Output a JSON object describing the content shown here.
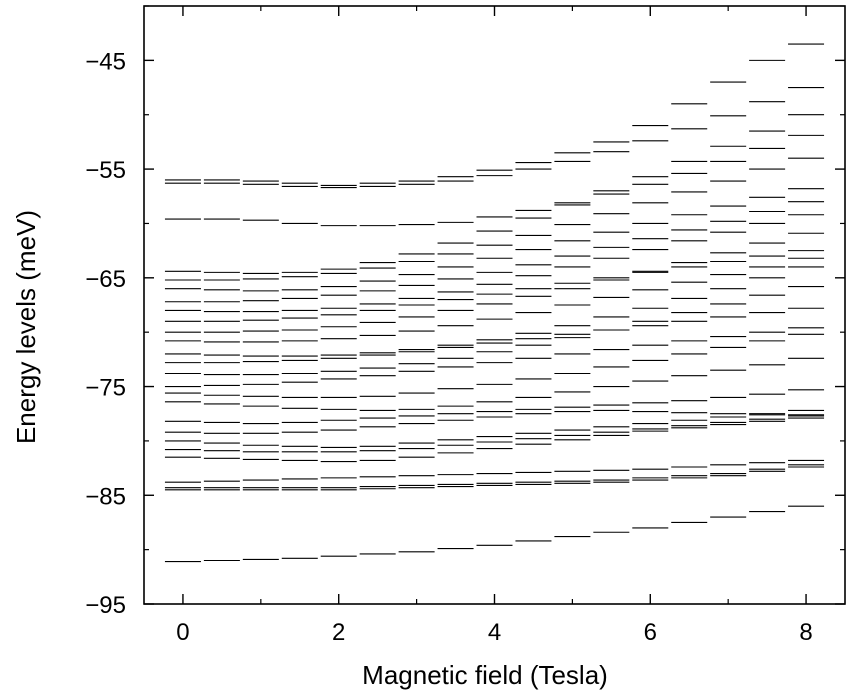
{
  "chart_data": {
    "type": "scatter",
    "mark": "horizontal level segments",
    "xlabel": "Magnetic field (Tesla)",
    "ylabel": "Energy levels (meV)",
    "xlim": [
      -0.5,
      8.5
    ],
    "ylim": [
      -95,
      -40
    ],
    "x_ticks": [
      0,
      2,
      4,
      6,
      8
    ],
    "y_ticks": [
      -45,
      -55,
      -65,
      -75,
      -85,
      -95
    ],
    "x_tick_labels": [
      "0",
      "2",
      "4",
      "6",
      "8"
    ],
    "y_tick_labels": [
      "−45",
      "−55",
      "−65",
      "−75",
      "−85",
      "−95"
    ],
    "grid": false,
    "series": [
      {
        "x": [
          0,
          0.5,
          1,
          1.5,
          2,
          2.5,
          3,
          3.5,
          4,
          4.5,
          5,
          5.5,
          6,
          6.5,
          7,
          7.5,
          8
        ],
        "values": [
          -91.1,
          -91.0,
          -90.9,
          -90.8,
          -90.6,
          -90.4,
          -90.2,
          -89.9,
          -89.6,
          -89.2,
          -88.8,
          -88.4,
          -88.0,
          -87.5,
          -87.0,
          -86.5,
          -86.0
        ]
      },
      {
        "x": [
          0,
          0.5,
          1,
          1.5,
          2,
          2.5,
          3,
          3.5,
          4,
          4.5,
          5,
          5.5,
          6,
          6.5,
          7,
          7.5,
          8
        ],
        "values": [
          -84.5,
          -84.5,
          -84.5,
          -84.5,
          -84.5,
          -84.4,
          -84.3,
          -84.2,
          -84.1,
          -84.0,
          -83.9,
          -83.8,
          -83.6,
          -83.4,
          -83.2,
          -82.8,
          -82.4
        ]
      },
      {
        "x": [
          0,
          0.5,
          1,
          1.5,
          2,
          2.5,
          3,
          3.5,
          4,
          4.5,
          5,
          5.5,
          6,
          6.5,
          7,
          7.5,
          8
        ],
        "values": [
          -84.3,
          -84.3,
          -84.3,
          -84.3,
          -84.3,
          -84.2,
          -84.1,
          -84.0,
          -83.9,
          -83.8,
          -83.7,
          -83.6,
          -83.4,
          -83.2,
          -83.0,
          -82.6,
          -82.2
        ]
      },
      {
        "x": [
          0,
          0.5,
          1,
          1.5,
          2,
          2.5,
          3,
          3.5,
          4,
          4.5,
          5,
          5.5,
          6,
          6.5,
          7,
          7.5,
          8
        ],
        "values": [
          -83.8,
          -83.7,
          -83.6,
          -83.5,
          -83.4,
          -83.3,
          -83.2,
          -83.1,
          -83.0,
          -82.9,
          -82.8,
          -82.7,
          -82.6,
          -82.4,
          -82.2,
          -82.0,
          -81.8
        ]
      },
      {
        "x": [
          0,
          0.5,
          1,
          1.5,
          2,
          2.5,
          3,
          3.5,
          4,
          4.5,
          5,
          5.5,
          6,
          6.5,
          7,
          7.5,
          8
        ],
        "values": [
          -81.5,
          -81.6,
          -81.7,
          -81.8,
          -81.9,
          -81.8,
          -81.5,
          -81.1,
          -80.7,
          -80.3,
          -79.9,
          -79.5,
          -79.1,
          -78.8,
          -78.5,
          -78.2,
          -77.9
        ]
      },
      {
        "x": [
          0,
          0.5,
          1,
          1.5,
          2,
          2.5,
          3,
          3.5,
          4,
          4.5,
          5,
          5.5,
          6,
          6.5,
          7,
          7.5,
          8
        ],
        "values": [
          -80.8,
          -80.9,
          -81.0,
          -81.0,
          -81.0,
          -80.9,
          -80.7,
          -80.4,
          -80.1,
          -79.8,
          -79.5,
          -79.2,
          -78.9,
          -78.6,
          -78.3,
          -78.0,
          -77.7
        ]
      },
      {
        "x": [
          0,
          0.5,
          1,
          1.5,
          2,
          2.5,
          3,
          3.5,
          4,
          4.5,
          5,
          5.5,
          6,
          6.5,
          7,
          7.5,
          8
        ],
        "values": [
          -80.0,
          -80.2,
          -80.4,
          -80.5,
          -80.6,
          -80.5,
          -80.2,
          -79.9,
          -79.6,
          -79.3,
          -79.0,
          -78.7,
          -78.4,
          -78.1,
          -77.8,
          -77.5,
          -77.2
        ]
      },
      {
        "x": [
          0,
          0.5,
          1,
          1.5,
          2,
          2.5,
          3,
          3.5,
          4,
          4.5,
          5,
          5.5,
          6,
          6.5,
          7,
          7.5,
          8
        ],
        "values": [
          -79.2,
          -79.3,
          -79.3,
          -79.2,
          -79.0,
          -78.7,
          -78.4,
          -78.1,
          -77.8,
          -77.5,
          -77.3,
          -77.2,
          -77.3,
          -77.4,
          -77.5,
          -77.6,
          -77.6
        ]
      },
      {
        "x": [
          0,
          0.5,
          1,
          1.5,
          2,
          2.5,
          3,
          3.5,
          4,
          4.5,
          5,
          5.5,
          6,
          6.5,
          7,
          7.5,
          8
        ],
        "values": [
          -78.2,
          -78.3,
          -78.4,
          -78.3,
          -78.1,
          -77.9,
          -77.7,
          -77.5,
          -77.3,
          -77.1,
          -76.9,
          -76.7,
          -76.5,
          -76.3,
          -76.0,
          -75.7,
          -75.3
        ]
      },
      {
        "x": [
          0,
          0.5,
          1,
          1.5,
          2,
          2.5,
          3,
          3.5,
          4,
          4.5,
          5,
          5.5,
          6,
          6.5,
          7,
          7.5,
          8
        ],
        "values": [
          -76.4,
          -76.6,
          -76.8,
          -77.0,
          -77.1,
          -77.2,
          -77.1,
          -76.8,
          -76.4,
          -76.0,
          -75.5,
          -75.0,
          -74.5,
          -74.0,
          -73.5,
          -73.0,
          -72.4
        ]
      },
      {
        "x": [
          0,
          0.5,
          1,
          1.5,
          2,
          2.5,
          3,
          3.5,
          4,
          4.5,
          5,
          5.5,
          6,
          6.5,
          7,
          7.5,
          8
        ],
        "values": [
          -75.6,
          -75.8,
          -75.9,
          -76.0,
          -76.0,
          -75.9,
          -75.6,
          -75.2,
          -74.8,
          -74.3,
          -73.8,
          -73.2,
          -72.6,
          -72.0,
          -71.4,
          -70.8,
          -70.2
        ]
      },
      {
        "x": [
          0,
          0.5,
          1,
          1.5,
          2,
          2.5,
          3,
          3.5,
          4,
          4.5,
          5,
          5.5,
          6,
          6.5,
          7,
          7.5,
          8
        ],
        "values": [
          -75.0,
          -74.9,
          -74.8,
          -74.6,
          -74.3,
          -74.0,
          -73.6,
          -73.2,
          -72.8,
          -72.4,
          -72.0,
          -71.6,
          -71.2,
          -70.8,
          -70.4,
          -70.0,
          -69.6
        ]
      },
      {
        "x": [
          0,
          0.5,
          1,
          1.5,
          2,
          2.5,
          3,
          3.5,
          4,
          4.5,
          5,
          5.5,
          6,
          6.5,
          7,
          7.5,
          8
        ],
        "values": [
          -73.8,
          -73.9,
          -73.9,
          -73.8,
          -73.6,
          -73.3,
          -72.9,
          -72.4,
          -71.8,
          -71.2,
          -70.5,
          -69.8,
          -69.0,
          -68.2,
          -67.4,
          -66.6,
          -65.8
        ]
      },
      {
        "x": [
          0,
          0.5,
          1,
          1.5,
          2,
          2.5,
          3,
          3.5,
          4,
          4.5,
          5,
          5.5,
          6,
          6.5,
          7,
          7.5,
          8
        ],
        "values": [
          -72.8,
          -72.8,
          -72.7,
          -72.6,
          -72.4,
          -72.1,
          -71.8,
          -71.4,
          -71.0,
          -70.6,
          -70.2,
          -69.8,
          -69.4,
          -69.0,
          -68.6,
          -68.2,
          -67.8
        ]
      },
      {
        "x": [
          0,
          0.5,
          1,
          1.5,
          2,
          2.5,
          3,
          3.5,
          4,
          4.5,
          5,
          5.5,
          6,
          6.5,
          7,
          7.5,
          8
        ],
        "values": [
          -72.0,
          -72.1,
          -72.2,
          -72.2,
          -72.1,
          -71.9,
          -71.6,
          -71.2,
          -70.7,
          -70.1,
          -69.4,
          -68.6,
          -67.8,
          -66.9,
          -66.0,
          -65.0,
          -64.0
        ]
      },
      {
        "x": [
          0,
          0.5,
          1,
          1.5,
          2,
          2.5,
          3,
          3.5,
          4,
          4.5,
          5,
          5.5,
          6,
          6.5,
          7,
          7.5,
          8
        ],
        "values": [
          -70.8,
          -70.9,
          -70.9,
          -70.8,
          -70.6,
          -70.3,
          -69.9,
          -69.4,
          -68.8,
          -68.2,
          -67.5,
          -66.8,
          -66.1,
          -65.4,
          -64.7,
          -64.0,
          -63.2
        ]
      },
      {
        "x": [
          0,
          0.5,
          1,
          1.5,
          2,
          2.5,
          3,
          3.5,
          4,
          4.5,
          5,
          5.5,
          6,
          6.5,
          7,
          7.5,
          8
        ],
        "values": [
          -70.0,
          -70.0,
          -69.9,
          -69.8,
          -69.5,
          -69.1,
          -68.6,
          -68.0,
          -67.4,
          -66.7,
          -66.0,
          -65.2,
          -64.4,
          -63.6,
          -62.7,
          -61.8,
          -60.9
        ]
      },
      {
        "x": [
          0,
          0.5,
          1,
          1.5,
          2,
          2.5,
          3,
          3.5,
          4,
          4.5,
          5,
          5.5,
          6,
          6.5,
          7,
          7.5,
          8
        ],
        "values": [
          -69.0,
          -69.0,
          -68.9,
          -68.7,
          -68.4,
          -68.0,
          -67.5,
          -67.0,
          -66.5,
          -66.0,
          -65.5,
          -65.0,
          -64.5,
          -64.0,
          -63.5,
          -63.0,
          -62.5
        ]
      },
      {
        "x": [
          0,
          0.5,
          1,
          1.5,
          2,
          2.5,
          3,
          3.5,
          4,
          4.5,
          5,
          5.5,
          6,
          6.5,
          7,
          7.5,
          8
        ],
        "values": [
          -68.0,
          -68.1,
          -68.1,
          -68.0,
          -67.8,
          -67.4,
          -66.9,
          -66.3,
          -65.6,
          -64.8,
          -64.0,
          -63.2,
          -62.4,
          -61.6,
          -60.8,
          -60.0,
          -59.2
        ]
      },
      {
        "x": [
          0,
          0.5,
          1,
          1.5,
          2,
          2.5,
          3,
          3.5,
          4,
          4.5,
          5,
          5.5,
          6,
          6.5,
          7,
          7.5,
          8
        ],
        "values": [
          -67.2,
          -67.2,
          -67.1,
          -66.9,
          -66.6,
          -66.2,
          -65.7,
          -65.1,
          -64.5,
          -63.8,
          -63.0,
          -62.2,
          -61.4,
          -60.6,
          -59.8,
          -58.9,
          -58.0
        ]
      },
      {
        "x": [
          0,
          0.5,
          1,
          1.5,
          2,
          2.5,
          3,
          3.5,
          4,
          4.5,
          5,
          5.5,
          6,
          6.5,
          7,
          7.5,
          8
        ],
        "values": [
          -66.0,
          -66.1,
          -66.2,
          -66.1,
          -65.8,
          -65.3,
          -64.7,
          -64.0,
          -63.2,
          -62.4,
          -61.6,
          -60.8,
          -60.0,
          -59.2,
          -58.4,
          -57.6,
          -56.8
        ]
      },
      {
        "x": [
          0,
          0.5,
          1,
          1.5,
          2,
          2.5,
          3,
          3.5,
          4,
          4.5,
          5,
          5.5,
          6,
          6.5,
          7,
          7.5,
          8
        ],
        "values": [
          -65.2,
          -65.2,
          -65.1,
          -64.9,
          -64.6,
          -64.1,
          -63.5,
          -62.8,
          -62.0,
          -61.1,
          -60.1,
          -59.1,
          -58.1,
          -57.1,
          -56.1,
          -55.0,
          -54.0
        ]
      },
      {
        "x": [
          0,
          0.5,
          1,
          1.5,
          2,
          2.5,
          3,
          3.5,
          4,
          4.5,
          5,
          5.5,
          6,
          6.5,
          7,
          7.5,
          8
        ],
        "values": [
          -64.4,
          -64.5,
          -64.6,
          -64.5,
          -64.2,
          -63.6,
          -62.8,
          -61.8,
          -60.7,
          -59.5,
          -58.3,
          -57.0,
          -55.7,
          -54.3,
          -52.9,
          -51.5,
          -50.0
        ]
      },
      {
        "x": [
          0,
          0.5,
          1,
          1.5,
          2,
          2.5,
          3,
          3.5,
          4,
          4.5,
          5,
          5.5,
          6,
          6.5,
          7,
          7.5,
          8
        ],
        "values": [
          -59.6,
          -59.6,
          -59.7,
          -60.0,
          -60.2,
          -60.2,
          -60.1,
          -59.9,
          -59.4,
          -58.8,
          -58.1,
          -57.3,
          -56.4,
          -55.4,
          -54.3,
          -53.1,
          -51.9
        ]
      },
      {
        "x": [
          0,
          0.5,
          1,
          1.5,
          2,
          2.5,
          3,
          3.5,
          4,
          4.5,
          5,
          5.5,
          6,
          6.5,
          7,
          7.5,
          8
        ],
        "values": [
          -56.3,
          -56.3,
          -56.4,
          -56.6,
          -56.7,
          -56.6,
          -56.4,
          -56.1,
          -55.6,
          -55.0,
          -54.3,
          -53.4,
          -52.4,
          -51.3,
          -50.1,
          -48.8,
          -47.5
        ]
      },
      {
        "x": [
          0,
          0.5,
          1,
          1.5,
          2,
          2.5,
          3,
          3.5,
          4,
          4.5,
          5,
          5.5,
          6,
          6.5,
          7,
          7.5,
          8
        ],
        "values": [
          -56.0,
          -56.0,
          -56.1,
          -56.3,
          -56.5,
          -56.3,
          -56.1,
          -55.7,
          -55.1,
          -54.4,
          -53.5,
          -52.5,
          -51.0,
          -49.0,
          -47.0,
          -45.0,
          -43.5
        ]
      }
    ]
  }
}
